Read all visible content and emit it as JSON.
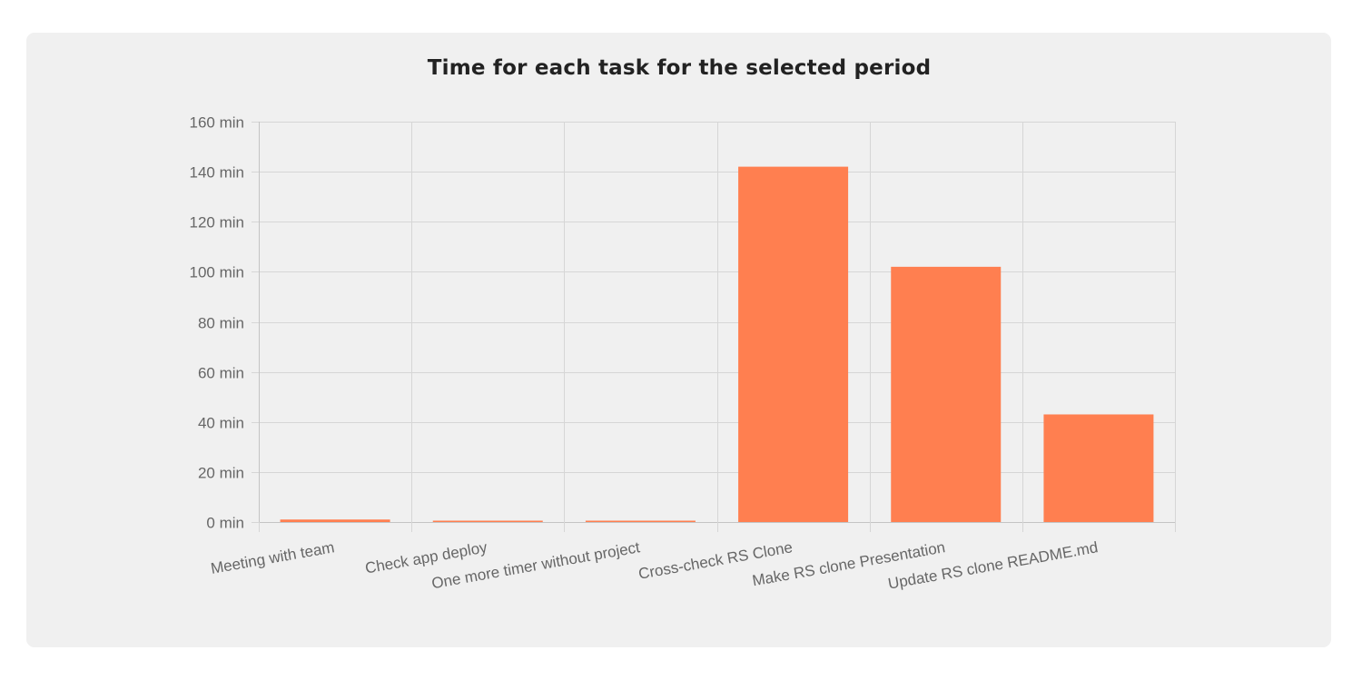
{
  "card": {
    "title": "Time for each task for the selected period"
  },
  "chart_data": {
    "type": "bar",
    "title": "Time for each task for the selected period",
    "categories": [
      "Meeting with team",
      "Check app deploy",
      "One more timer without project",
      "Cross-check RS Clone",
      "Make RS clone Presentation",
      "Update RS clone README.md"
    ],
    "values": [
      1,
      0.3,
      0.2,
      142,
      102,
      43
    ],
    "xlabel": "",
    "ylabel": "",
    "ylim": [
      0,
      160
    ],
    "y_ticks": [
      0,
      20,
      40,
      60,
      80,
      100,
      120,
      140,
      160
    ],
    "y_tick_format": "{v} min",
    "grid": true,
    "legend": "none",
    "bar_color": "#ff7f50",
    "grid_color": "#d6d6d6",
    "axis_color": "#c4c4c4"
  }
}
